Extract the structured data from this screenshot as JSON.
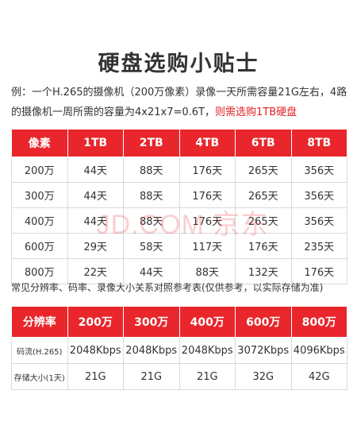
{
  "title": "硬盘选购小贴士",
  "example": {
    "text": "例：一个H.265的摄像机（200万像素）录像一天所需容量21G左右，4路的摄像机一周所需的容量为4x21x7=0.6T，",
    "highlight": "则需选购1TB硬盘"
  },
  "capacity_table": {
    "headers": [
      "像素",
      "1TB",
      "2TB",
      "4TB",
      "6TB",
      "8TB"
    ],
    "rows": [
      [
        "200万",
        "44天",
        "88天",
        "176天",
        "265天",
        "356天"
      ],
      [
        "300万",
        "44天",
        "88天",
        "176天",
        "265天",
        "356天"
      ],
      [
        "400万",
        "44天",
        "88天",
        "176天",
        "265天",
        "356天"
      ],
      [
        "600万",
        "29天",
        "58天",
        "117天",
        "176天",
        "235天"
      ],
      [
        "800万",
        "22天",
        "44天",
        "88天",
        "132天",
        "176天"
      ]
    ]
  },
  "note": "常见分辨率、码率、录像大小关系对照参考表(仅供参考，以实际存储为准)",
  "resolution_table": {
    "headers": [
      "分辨率",
      "200万",
      "300万",
      "400万",
      "600万",
      "800万"
    ],
    "rows": [
      [
        "码流(H.265)",
        "2048Kbps",
        "2048Kbps",
        "2048Kbps",
        "3072Kbps",
        "4096Kbps"
      ],
      [
        "存储大小(1天)",
        "21G",
        "21G",
        "21G",
        "32G",
        "42G"
      ]
    ]
  },
  "watermark": "JD.COM 京东"
}
